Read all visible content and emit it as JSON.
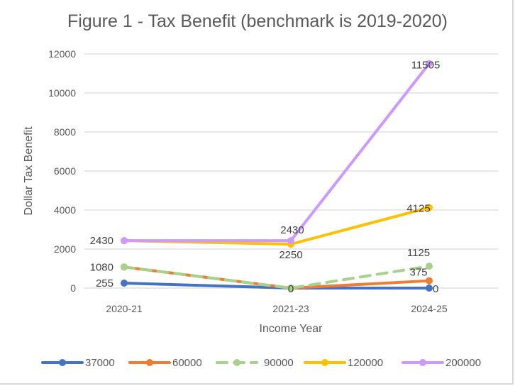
{
  "chart_data": {
    "type": "line",
    "title": "Figure 1 - Tax Benefit (benchmark is 2019-2020)",
    "xlabel": "Income Year",
    "ylabel": "Dollar Tax Benefit",
    "categories": [
      "2020-21",
      "2021-23",
      "2024-25"
    ],
    "ylim": [
      0,
      12000
    ],
    "yticks": [
      0,
      2000,
      4000,
      6000,
      8000,
      10000,
      12000
    ],
    "grid": true,
    "legend": "bottom",
    "series": [
      {
        "name": "37000",
        "values": [
          255,
          0,
          0
        ],
        "color": "#4472C4",
        "dashed": false,
        "labels": [
          "255",
          "",
          "0"
        ]
      },
      {
        "name": "60000",
        "values": [
          1080,
          0,
          375
        ],
        "color": "#ED7D31",
        "dashed": false,
        "labels": [
          "",
          "",
          "375"
        ]
      },
      {
        "name": "90000",
        "values": [
          1080,
          0,
          1125
        ],
        "color": "#A9D18E",
        "dashed": true,
        "labels": [
          "1080",
          "0",
          "1125"
        ]
      },
      {
        "name": "120000",
        "values": [
          2430,
          2250,
          4125
        ],
        "color": "#FFC000",
        "dashed": false,
        "labels": [
          "",
          "2250",
          "4125"
        ]
      },
      {
        "name": "200000",
        "values": [
          2430,
          2430,
          11505
        ],
        "color": "#CC99FF",
        "dashed": false,
        "labels": [
          "2430",
          "2430",
          "11505"
        ]
      }
    ]
  }
}
